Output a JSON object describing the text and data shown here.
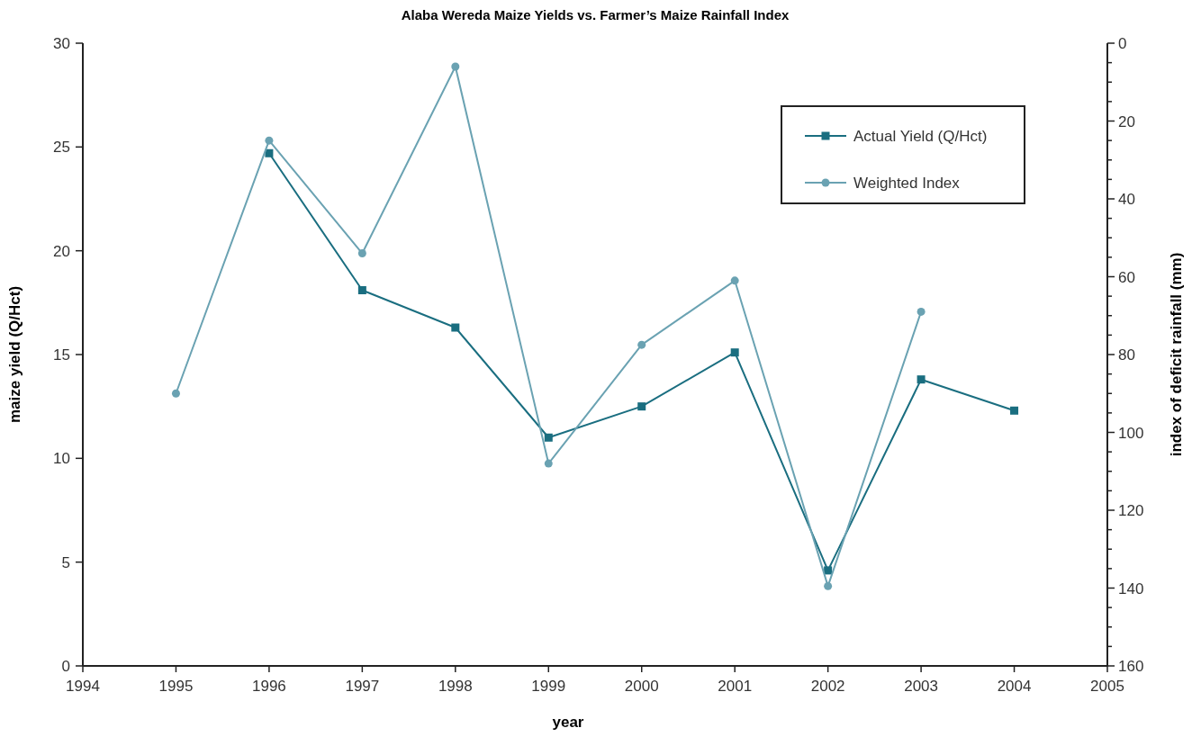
{
  "chart_data": {
    "type": "line",
    "title": "Alaba Wereda Maize Yields vs. Farmer’s Maize Rainfall Index",
    "xlabel": "year",
    "ylabel": "maize yield (Q/Hct)",
    "y2label": "index of deficit rainfall (mm)",
    "xlim": [
      1994,
      2005
    ],
    "xticks": [
      1994,
      1995,
      1996,
      1997,
      1998,
      1999,
      2000,
      2001,
      2002,
      2003,
      2004,
      2005
    ],
    "ylim": [
      0,
      30
    ],
    "yticks": [
      0,
      5,
      10,
      15,
      20,
      25,
      30
    ],
    "y2lim": [
      160,
      0
    ],
    "y2ticks": [
      0,
      {
        "value": 5,
        "label": null
      },
      {
        "value": 10,
        "label": null
      },
      {
        "value": 15,
        "label": null
      },
      20,
      {
        "value": 25,
        "label": null
      },
      {
        "value": 30,
        "label": null
      },
      {
        "value": 35,
        "label": null
      },
      40,
      {
        "value": 45,
        "label": null
      },
      {
        "value": 50,
        "label": null
      },
      {
        "value": 55,
        "label": null
      },
      60,
      {
        "value": 65,
        "label": null
      },
      {
        "value": 70,
        "label": null
      },
      {
        "value": 75,
        "label": null
      },
      80,
      {
        "value": 85,
        "label": null
      },
      {
        "value": 90,
        "label": null
      },
      {
        "value": 95,
        "label": null
      },
      100,
      {
        "value": 105,
        "label": null
      },
      {
        "value": 110,
        "label": null
      },
      {
        "value": 115,
        "label": null
      },
      120,
      {
        "value": 125,
        "label": null
      },
      {
        "value": 130,
        "label": null
      },
      {
        "value": 135,
        "label": null
      },
      140,
      {
        "value": 145,
        "label": null
      },
      {
        "value": 150,
        "label": null
      },
      {
        "value": 155,
        "label": null
      },
      160
    ],
    "grid": false,
    "legend": "top right",
    "line_style": "solid",
    "series": [
      {
        "name": "Actual Yield (Q/Hct)",
        "color": "#1a6e80",
        "marker": "square",
        "x": [
          1996,
          1997,
          1998,
          1999,
          2000,
          2001,
          2002,
          2003,
          2004
        ],
        "values": [
          24.7,
          18.1,
          16.3,
          11.0,
          12.5,
          15.1,
          4.6,
          13.8,
          12.3
        ]
      },
      {
        "name": "Weighted Index",
        "color": "#6aa2b2",
        "marker": "circle",
        "axis": "y2",
        "x": [
          1995,
          1996,
          1997,
          1998,
          1999,
          2000,
          2001,
          2002,
          2003
        ],
        "values": [
          90,
          25,
          54,
          6,
          108,
          77.5,
          61,
          139.5,
          69
        ]
      }
    ]
  }
}
